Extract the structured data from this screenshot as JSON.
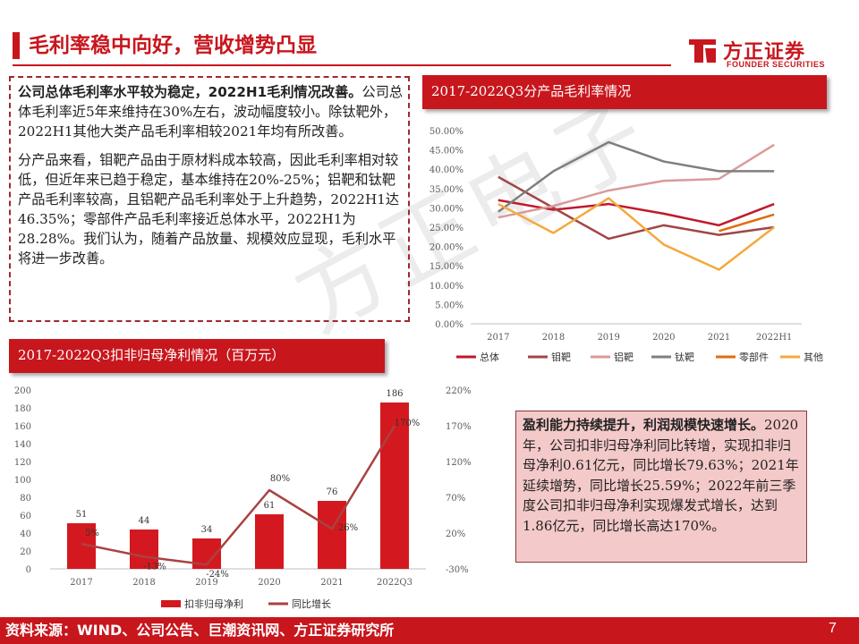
{
  "header": {
    "title": "毛利率稳中向好，营收增势凸显"
  },
  "logo": {
    "name_cn": "方正证券",
    "name_en": "FOUNDER SECURITIES",
    "color": "#c8161d"
  },
  "watermark": {
    "text": "方正电子"
  },
  "text_box_1": {
    "p1_bold": "公司总体毛利率水平较为稳定，2022H1毛利情况改善。",
    "p1_rest": "公司总体毛利率近5年来维持在30%左右，波动幅度较小。除钛靶外，2022H1其他大类产品毛利率相较2021年均有所改善。",
    "p2": "分产品来看，钼靶产品由于原材料成本较高，因此毛利率相对较低，但近年来已趋于稳定，基本维持在20%-25%；铝靶和钛靶产品毛利率较高，且铝靶产品毛利率处于上升趋势，2022H1达46.35%；零部件产品毛利率接近总体水平，2022H1为28.28%。我们认为，随着产品放量、规模效应显现，毛利水平将进一步改善。"
  },
  "text_box_2": {
    "bold": "盈利能力持续提升，利润规模快速增长。",
    "rest": "2020年，公司扣非归母净利同比转增，实现扣非归母净利0.61亿元，同比增长79.63%；2021年延续增势，同比增长25.59%；2022年前三季度公司扣非归母净利实现爆发式增长，达到1.86亿元，同比增长高达170%。"
  },
  "footer": {
    "source": "资料来源：WIND、公司公告、巨潮资讯网、方正证券研究所",
    "page": "7"
  },
  "chart_data": [
    {
      "type": "line",
      "title": "2017-2022Q3分产品毛利率情况",
      "x": [
        "2017",
        "2018",
        "2019",
        "2020",
        "2021",
        "2022H1"
      ],
      "y_ticks": [
        "0.00%",
        "5.00%",
        "10.00%",
        "15.00%",
        "20.00%",
        "25.00%",
        "30.00%",
        "35.00%",
        "40.00%",
        "45.00%",
        "50.00%"
      ],
      "ylim": [
        0,
        50
      ],
      "grid": false,
      "legend_position": "bottom",
      "series": [
        {
          "name": "总体",
          "color": "#c0192b",
          "values": [
            32,
            29.5,
            31,
            28.5,
            25.5,
            31
          ]
        },
        {
          "name": "钼靶",
          "color": "#a14545",
          "values": [
            38,
            30,
            22,
            25.5,
            23,
            25
          ]
        },
        {
          "name": "铝靶",
          "color": "#d99a9a",
          "values": [
            27.5,
            30.5,
            34.5,
            37,
            37.5,
            46.35
          ]
        },
        {
          "name": "钛靶",
          "color": "#7f7f7f",
          "values": [
            29,
            39.5,
            47,
            42,
            39.5,
            39.5
          ]
        },
        {
          "name": "零部件",
          "color": "#e26b0a",
          "values": [
            null,
            null,
            null,
            null,
            24,
            28.28
          ]
        },
        {
          "name": "其他",
          "color": "#f4a93c",
          "values": [
            31,
            23.5,
            32.5,
            20.5,
            14,
            25
          ]
        }
      ]
    },
    {
      "type": "bar",
      "title": "2017-2022Q3扣非归母净利情况（百万元）",
      "categories": [
        "2017",
        "2018",
        "2019",
        "2020",
        "2021",
        "2022Q3"
      ],
      "y_ticks_left": [
        "0",
        "20",
        "40",
        "60",
        "80",
        "100",
        "120",
        "140",
        "160",
        "180",
        "200"
      ],
      "ylim_left": [
        0,
        200
      ],
      "y_ticks_right": [
        "-30%",
        "20%",
        "70%",
        "120%",
        "170%",
        "220%"
      ],
      "ylim_right": [
        -30,
        220
      ],
      "legend_position": "bottom",
      "series": [
        {
          "name": "扣非归母净利",
          "type": "bar",
          "color": "#d3191f",
          "values": [
            51,
            44,
            34,
            61,
            76,
            186
          ],
          "labels": [
            "51",
            "44",
            "34",
            "61",
            "76",
            "186"
          ]
        },
        {
          "name": "同比增长",
          "type": "line",
          "color": "#a94242",
          "axis": "right",
          "values": [
            5,
            -13,
            -24,
            80,
            26,
            170
          ],
          "labels": [
            "5%",
            "-13%",
            "-24%",
            "80%",
            "26%",
            "170%"
          ]
        }
      ]
    }
  ]
}
